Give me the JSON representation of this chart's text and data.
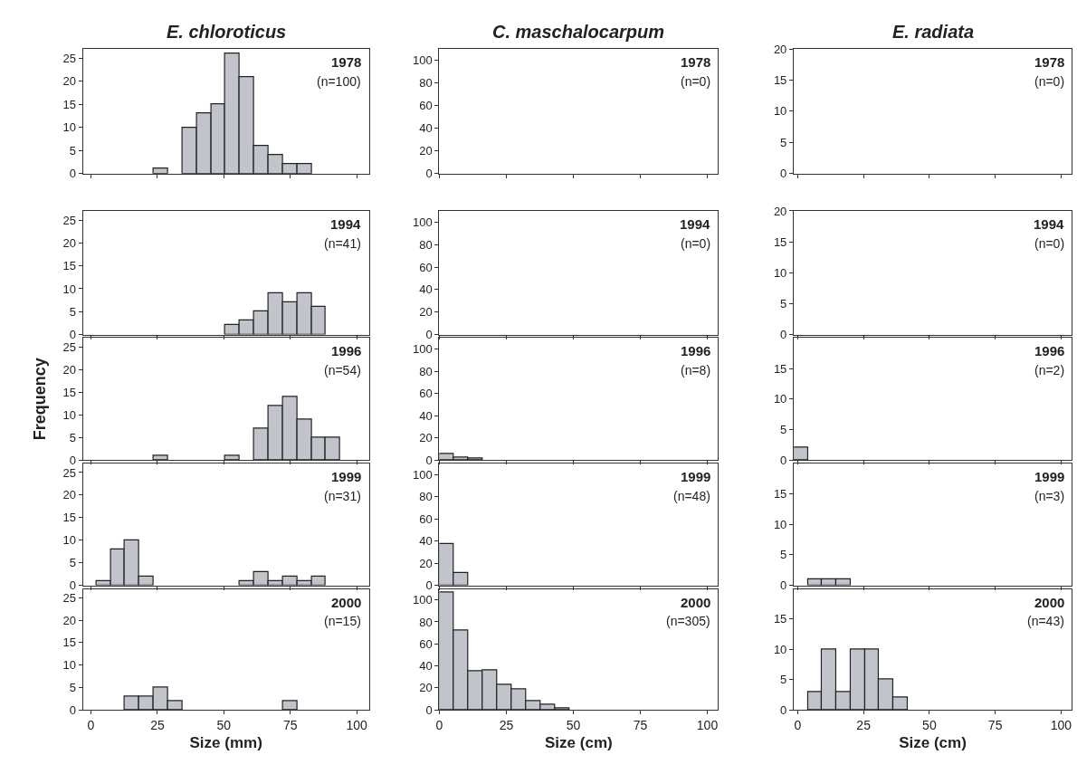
{
  "chart_data": [
    {
      "type": "histogram",
      "title": "E. chloroticus",
      "bins": [
        2,
        7.4,
        12.8,
        18.2,
        23.6,
        29,
        34.4,
        39.8,
        45.2,
        50.6,
        56,
        61.4,
        66.8,
        72.2,
        77.6,
        83,
        88.4,
        93.8,
        99.2,
        104.6
      ],
      "values": [
        0,
        0,
        0,
        0,
        1,
        0,
        10,
        13,
        15,
        26,
        21,
        6,
        4,
        2,
        2,
        0,
        0,
        0,
        0
      ],
      "color": "#c2c4cc",
      "xlim": [
        -3,
        104.6
      ],
      "ylim": [
        0,
        27
      ],
      "xticks": [
        0,
        25,
        50,
        75,
        100
      ],
      "yticks": [
        0,
        5,
        10,
        15,
        20,
        25
      ],
      "annotations": [
        "1978",
        "(n=100)"
      ],
      "tick_labels": "y"
    },
    {
      "type": "histogram",
      "title": "C. maschalocarpum",
      "xlim": [
        0,
        104
      ],
      "ylim": [
        0,
        110
      ],
      "xticks": [
        0,
        25,
        50,
        75,
        100
      ],
      "yticks": [
        0,
        20,
        40,
        60,
        80,
        100
      ],
      "annotations": [
        "1978",
        "(n=0)"
      ],
      "tick_labels": "y"
    },
    {
      "type": "histogram",
      "title": "E. radiata",
      "xlim": [
        -1.5,
        104
      ],
      "ylim": [
        0,
        20
      ],
      "xticks": [
        0,
        25,
        50,
        75,
        100
      ],
      "yticks": [
        0,
        5,
        10,
        15,
        20
      ],
      "annotations": [
        "1978",
        "(n=0)"
      ],
      "tick_labels": "y"
    },
    {
      "type": "histogram",
      "bins": [
        2,
        7.4,
        12.8,
        18.2,
        23.6,
        29,
        34.4,
        39.8,
        45.2,
        50.6,
        56,
        61.4,
        66.8,
        72.2,
        77.6,
        83,
        88.4,
        93.8,
        99.2,
        104.6
      ],
      "values": [
        0,
        0,
        0,
        0,
        0,
        0,
        0,
        0,
        0,
        2,
        3,
        5,
        9,
        7,
        9,
        6,
        0,
        0,
        0
      ],
      "color": "#c2c4cc",
      "xlim": [
        -3,
        104.6
      ],
      "ylim": [
        0,
        27
      ],
      "xticks": [
        0,
        25,
        50,
        75,
        100
      ],
      "yticks": [
        0,
        5,
        10,
        15,
        20,
        25
      ],
      "annotations": [
        "1994",
        "(n=41)"
      ],
      "tick_labels": "y"
    },
    {
      "type": "histogram",
      "xlim": [
        0,
        104
      ],
      "ylim": [
        0,
        110
      ],
      "xticks": [
        0,
        25,
        50,
        75,
        100
      ],
      "yticks": [
        0,
        20,
        40,
        60,
        80,
        100
      ],
      "annotations": [
        "1994",
        "(n=0)"
      ],
      "tick_labels": "y"
    },
    {
      "type": "histogram",
      "xlim": [
        -1.5,
        104
      ],
      "ylim": [
        0,
        20
      ],
      "xticks": [
        0,
        25,
        50,
        75,
        100
      ],
      "yticks": [
        0,
        5,
        10,
        15,
        20
      ],
      "annotations": [
        "1994",
        "(n=0)"
      ],
      "tick_labels": "y"
    },
    {
      "type": "histogram",
      "ylabel": "Frequency",
      "bins": [
        2,
        7.4,
        12.8,
        18.2,
        23.6,
        29,
        34.4,
        39.8,
        45.2,
        50.6,
        56,
        61.4,
        66.8,
        72.2,
        77.6,
        83,
        88.4,
        93.8,
        99.2,
        104.6
      ],
      "values": [
        0,
        0,
        0,
        0,
        1,
        0,
        0,
        0,
        0,
        1,
        0,
        7,
        12,
        14,
        9,
        5,
        5,
        0,
        0
      ],
      "color": "#c2c4cc",
      "xlim": [
        -3,
        104.6
      ],
      "ylim": [
        0,
        27
      ],
      "xticks": [
        0,
        25,
        50,
        75,
        100
      ],
      "yticks": [
        0,
        5,
        10,
        15,
        20,
        25
      ],
      "annotations": [
        "1996",
        "(n=54)"
      ],
      "tick_labels": "y"
    },
    {
      "type": "histogram",
      "bins": [
        0,
        5.4,
        10.8,
        16.2,
        21.6,
        27,
        32.4,
        37.8,
        43.2,
        48.6,
        54,
        59.4,
        64.8,
        70.2,
        75.6,
        81,
        86.4,
        91.8,
        97.2,
        102.6
      ],
      "values": [
        5,
        2,
        1,
        0,
        0,
        0,
        0,
        0,
        0,
        0,
        0,
        0,
        0,
        0,
        0,
        0,
        0,
        0,
        0
      ],
      "color": "#c2c4cc",
      "xlim": [
        0,
        104
      ],
      "ylim": [
        0,
        110
      ],
      "xticks": [
        0,
        25,
        50,
        75,
        100
      ],
      "yticks": [
        0,
        20,
        40,
        60,
        80,
        100
      ],
      "annotations": [
        "1996",
        "(n=8)"
      ],
      "tick_labels": "y"
    },
    {
      "type": "histogram",
      "bins": [
        -1.5,
        3.9,
        9.3,
        14.7,
        20.1,
        25.5,
        30.9,
        36.3,
        41.7,
        47.1,
        52.5,
        57.9,
        63.3,
        68.7,
        74.1,
        79.5,
        84.9,
        90.3,
        95.7,
        101.1
      ],
      "values": [
        2,
        0,
        0,
        0,
        0,
        0,
        0,
        0,
        0,
        0,
        0,
        0,
        0,
        0,
        0,
        0,
        0,
        0,
        0
      ],
      "color": "#c2c4cc",
      "xlim": [
        -1.5,
        104
      ],
      "ylim": [
        0,
        20
      ],
      "xticks": [
        0,
        25,
        50,
        75,
        100
      ],
      "yticks": [
        0,
        5,
        10,
        15
      ],
      "annotations": [
        "1996",
        "(n=2)"
      ],
      "tick_labels": "y"
    },
    {
      "type": "histogram",
      "bins": [
        2,
        7.4,
        12.8,
        18.2,
        23.6,
        29,
        34.4,
        39.8,
        45.2,
        50.6,
        56,
        61.4,
        66.8,
        72.2,
        77.6,
        83,
        88.4,
        93.8,
        99.2,
        104.6
      ],
      "values": [
        1,
        8,
        10,
        2,
        0,
        0,
        0,
        0,
        0,
        0,
        1,
        3,
        1,
        2,
        1,
        2,
        0,
        0,
        0
      ],
      "color": "#c2c4cc",
      "xlim": [
        -3,
        104.6
      ],
      "ylim": [
        0,
        27
      ],
      "xticks": [
        0,
        25,
        50,
        75,
        100
      ],
      "yticks": [
        0,
        5,
        10,
        15,
        20,
        25
      ],
      "annotations": [
        "1999",
        "(n=31)"
      ],
      "tick_labels": "y"
    },
    {
      "type": "histogram",
      "bins": [
        0,
        5.4,
        10.8,
        16.2,
        21.6,
        27,
        32.4,
        37.8,
        43.2,
        48.6,
        54,
        59.4,
        64.8,
        70.2,
        75.6,
        81,
        86.4,
        91.8,
        97.2,
        102.6
      ],
      "values": [
        37,
        11,
        0,
        0,
        0,
        0,
        0,
        0,
        0,
        0,
        0,
        0,
        0,
        0,
        0,
        0,
        0,
        0,
        0
      ],
      "color": "#c2c4cc",
      "xlim": [
        0,
        104
      ],
      "ylim": [
        0,
        110
      ],
      "xticks": [
        0,
        25,
        50,
        75,
        100
      ],
      "yticks": [
        0,
        20,
        40,
        60,
        80,
        100
      ],
      "annotations": [
        "1999",
        "(n=48)"
      ],
      "tick_labels": "y"
    },
    {
      "type": "histogram",
      "bins": [
        -1.5,
        3.9,
        9.3,
        14.7,
        20.1,
        25.5,
        30.9,
        36.3,
        41.7,
        47.1,
        52.5,
        57.9,
        63.3,
        68.7,
        74.1,
        79.5,
        84.9,
        90.3,
        95.7,
        101.1
      ],
      "values": [
        0,
        1,
        1,
        1,
        0,
        0,
        0,
        0,
        0,
        0,
        0,
        0,
        0,
        0,
        0,
        0,
        0,
        0,
        0
      ],
      "color": "#c2c4cc",
      "xlim": [
        -1.5,
        104
      ],
      "ylim": [
        0,
        20
      ],
      "xticks": [
        0,
        25,
        50,
        75,
        100
      ],
      "yticks": [
        0,
        5,
        10,
        15
      ],
      "annotations": [
        "1999",
        "(n=3)"
      ],
      "tick_labels": "y"
    },
    {
      "type": "histogram",
      "xlabel": "Size (mm)",
      "bins": [
        2,
        7.4,
        12.8,
        18.2,
        23.6,
        29,
        34.4,
        39.8,
        45.2,
        50.6,
        56,
        61.4,
        66.8,
        72.2,
        77.6,
        83,
        88.4,
        93.8,
        99.2,
        104.6
      ],
      "values": [
        0,
        0,
        3,
        3,
        5,
        2,
        0,
        0,
        0,
        0,
        0,
        0,
        0,
        2,
        0,
        0,
        0,
        0,
        0
      ],
      "color": "#c2c4cc",
      "xlim": [
        -3,
        104.6
      ],
      "ylim": [
        0,
        27
      ],
      "xticks": [
        0,
        25,
        50,
        75,
        100
      ],
      "yticks": [
        0,
        5,
        10,
        15,
        20,
        25
      ],
      "annotations": [
        "2000",
        "(n=15)"
      ]
    },
    {
      "type": "histogram",
      "xlabel": "Size (cm)",
      "bins": [
        0,
        5.4,
        10.8,
        16.2,
        21.6,
        27,
        32.4,
        37.8,
        43.2,
        48.6,
        54,
        59.4,
        64.8,
        70.2,
        75.6,
        81,
        86.4,
        91.8,
        97.2,
        102.6
      ],
      "values": [
        107,
        72,
        35,
        36,
        23,
        19,
        8,
        5,
        1,
        0,
        0,
        0,
        0,
        0,
        0,
        0,
        0,
        0,
        0
      ],
      "color": "#c2c4cc",
      "xlim": [
        0,
        104
      ],
      "ylim": [
        0,
        110
      ],
      "xticks": [
        0,
        25,
        50,
        75,
        100
      ],
      "yticks": [
        0,
        20,
        40,
        60,
        80,
        100
      ],
      "annotations": [
        "2000",
        "(n=305)"
      ]
    },
    {
      "type": "histogram",
      "xlabel": "Size (cm)",
      "bins": [
        -1.5,
        3.9,
        9.3,
        14.7,
        20.1,
        25.5,
        30.9,
        36.3,
        41.7,
        47.1,
        52.5,
        57.9,
        63.3,
        68.7,
        74.1,
        79.5,
        84.9,
        90.3,
        95.7,
        101.1
      ],
      "values": [
        0,
        3,
        10,
        3,
        10,
        10,
        5,
        2,
        0,
        0,
        0,
        0,
        0,
        0,
        0,
        0,
        0,
        0,
        0
      ],
      "color": "#c2c4cc",
      "xlim": [
        -1.5,
        104
      ],
      "ylim": [
        0,
        20
      ],
      "xticks": [
        0,
        25,
        50,
        75,
        100
      ],
      "yticks": [
        0,
        5,
        10,
        15
      ],
      "annotations": [
        "2000",
        "(n=43)"
      ]
    }
  ]
}
